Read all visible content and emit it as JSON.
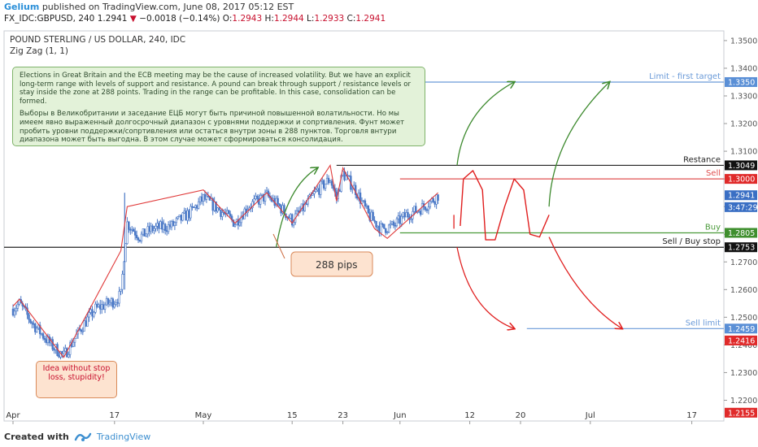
{
  "header": {
    "user": "Gelium",
    "published": " published on TradingView.com, June 08, 2017 05:12 EST",
    "symbol": "FX_IDC:GBPUSD, 240",
    "last": "1.2941",
    "change": "−0.0018 (−0.14%)",
    "o_label": "O:",
    "o": "1.2943",
    "h_label": "H:",
    "h": "1.2944",
    "l_label": "L:",
    "l": "1.2933",
    "c_label": "C:",
    "c": "1.2941"
  },
  "footer": {
    "created_with": "Created with",
    "brand": "TradingView"
  },
  "colors": {
    "candle": "#4a78c6",
    "zigzag": "#e03a3a",
    "green_arrow": "#3d8a2e",
    "red_arrow": "#e01e1e",
    "support": "#222222",
    "blue_level": "#6a9ad8",
    "sell_line": "#e05050",
    "buy_line": "#4a9a3a"
  },
  "chart_data": {
    "type": "candlestick",
    "title": "POUND STERLING / US DOLLAR, 240, IDC",
    "indicator": "Zig Zag (1, 1)",
    "y_axis": {
      "range": [
        1.2125,
        1.3535
      ],
      "ticks": [
        "1.3500",
        "1.3400",
        "1.3300",
        "1.3200",
        "1.3100",
        "1.3000",
        "1.2900",
        "1.2800",
        "1.2700",
        "1.2600",
        "1.2500",
        "1.2400",
        "1.2300",
        "1.2200"
      ]
    },
    "x_axis": {
      "labels": [
        {
          "label": "Apr",
          "day": 0
        },
        {
          "label": "17",
          "day": 16
        },
        {
          "label": "May",
          "day": 30
        },
        {
          "label": "15",
          "day": 44
        },
        {
          "label": "23",
          "day": 52
        },
        {
          "label": "Jun",
          "day": 61
        },
        {
          "label": "12",
          "day": 72
        },
        {
          "label": "20",
          "day": 80
        },
        {
          "label": "Jul",
          "day": 91
        },
        {
          "label": "17",
          "day": 107
        }
      ]
    },
    "price_flags": [
      {
        "label": "1.3350",
        "value": 1.335,
        "color": "#5a8fd6",
        "text_color": "#ffffff"
      },
      {
        "label": "1.3049",
        "value": 1.3049,
        "color": "#111111",
        "text_color": "#ffffff"
      },
      {
        "label": "1.3000",
        "value": 1.3,
        "color": "#e02a2a",
        "text_color": "#ffffff"
      },
      {
        "label": "1.2941",
        "value": 1.2941,
        "color": "#3a6fc4",
        "text_color": "#ffffff"
      },
      {
        "label": "3:47:29",
        "value": 1.2898,
        "color": "#3a6fc4",
        "text_color": "#ffffff"
      },
      {
        "label": "1.2805",
        "value": 1.2805,
        "color": "#3f8f2e",
        "text_color": "#ffffff"
      },
      {
        "label": "1.2753",
        "value": 1.2753,
        "color": "#111111",
        "text_color": "#ffffff"
      },
      {
        "label": "1.2459",
        "value": 1.2459,
        "color": "#5a8fd6",
        "text_color": "#ffffff"
      },
      {
        "label": "1.2416",
        "value": 1.2416,
        "color": "#e02a2a",
        "text_color": "#ffffff"
      },
      {
        "label": "1.2155",
        "value": 1.2155,
        "color": "#e02a2a",
        "text_color": "#ffffff"
      }
    ],
    "levels": [
      {
        "name": "Limit - first target",
        "value": 1.335,
        "from_day": 62,
        "color": "#6a9ad8"
      },
      {
        "name": "Restance",
        "value": 1.3049,
        "from_day": 51,
        "color": "#222222"
      },
      {
        "name": "Sell",
        "value": 1.3,
        "from_day": 61,
        "color": "#e05050"
      },
      {
        "name": "Buy",
        "value": 1.2805,
        "from_day": 61,
        "color": "#4a9a3a"
      },
      {
        "name": "Sell / Buy stop",
        "value": 1.2753,
        "from_day": 0,
        "color": "#222222"
      },
      {
        "name": "Sell limit",
        "value": 1.2459,
        "from_day": 81,
        "color": "#6a9ad8"
      }
    ],
    "zigzag": [
      [
        0,
        1.254
      ],
      [
        1,
        1.2565
      ],
      [
        8,
        1.2355
      ],
      [
        17,
        1.274
      ],
      [
        18,
        1.29
      ],
      [
        30,
        1.296
      ],
      [
        35,
        1.284
      ],
      [
        40,
        1.295
      ],
      [
        44,
        1.284
      ],
      [
        50,
        1.3049
      ],
      [
        51,
        1.292
      ],
      [
        52,
        1.304
      ],
      [
        57,
        1.282
      ],
      [
        59,
        1.2785
      ],
      [
        67,
        1.295
      ]
    ],
    "candle_anchors": [
      [
        0,
        1.253
      ],
      [
        1,
        1.255
      ],
      [
        3,
        1.248
      ],
      [
        6,
        1.24
      ],
      [
        8,
        1.236
      ],
      [
        11,
        1.247
      ],
      [
        13,
        1.253
      ],
      [
        16,
        1.256
      ],
      [
        17,
        1.258
      ],
      [
        17.6,
        1.275
      ],
      [
        18,
        1.284
      ],
      [
        20,
        1.279
      ],
      [
        22,
        1.282
      ],
      [
        25,
        1.283
      ],
      [
        28,
        1.288
      ],
      [
        30,
        1.293
      ],
      [
        33,
        1.288
      ],
      [
        35,
        1.284
      ],
      [
        37,
        1.29
      ],
      [
        40,
        1.294
      ],
      [
        42,
        1.29
      ],
      [
        44,
        1.285
      ],
      [
        46,
        1.29
      ],
      [
        48,
        1.296
      ],
      [
        50,
        1.3
      ],
      [
        51,
        1.293
      ],
      [
        52,
        1.302
      ],
      [
        54,
        1.296
      ],
      [
        56,
        1.287
      ],
      [
        58,
        1.282
      ],
      [
        60,
        1.283
      ],
      [
        62,
        1.287
      ],
      [
        64,
        1.289
      ],
      [
        66,
        1.292
      ],
      [
        67,
        1.2941
      ]
    ],
    "annotations": {
      "info_en": "Elections in Great Britain and the ECB meeting may be the cause of increased volatility. But we have an explicit long-term range with levels of support and resistance. A pound can break through support / resistance levels or stay inside the zone at 288 points. Trading in the range can be profitable. In this case, consolidation can be formed.",
      "info_ru": "Выборы в Великобритании и заседание ЕЦБ могут быть причиной повышенной волатильности. Но мы имеем явно выраженный долгосрочный диапазон с уровнями поддержки и сопртивления. Фунт может пробить уровни поддержки/сопртивления или остаться внутри зоны в 288 пунктов. Торговля внтури диапазона может быть выгодна. В этом случае может сформироваться консолидация.",
      "pips": "288 pips",
      "idea": "Idea without stop loss, stupidity!"
    }
  }
}
